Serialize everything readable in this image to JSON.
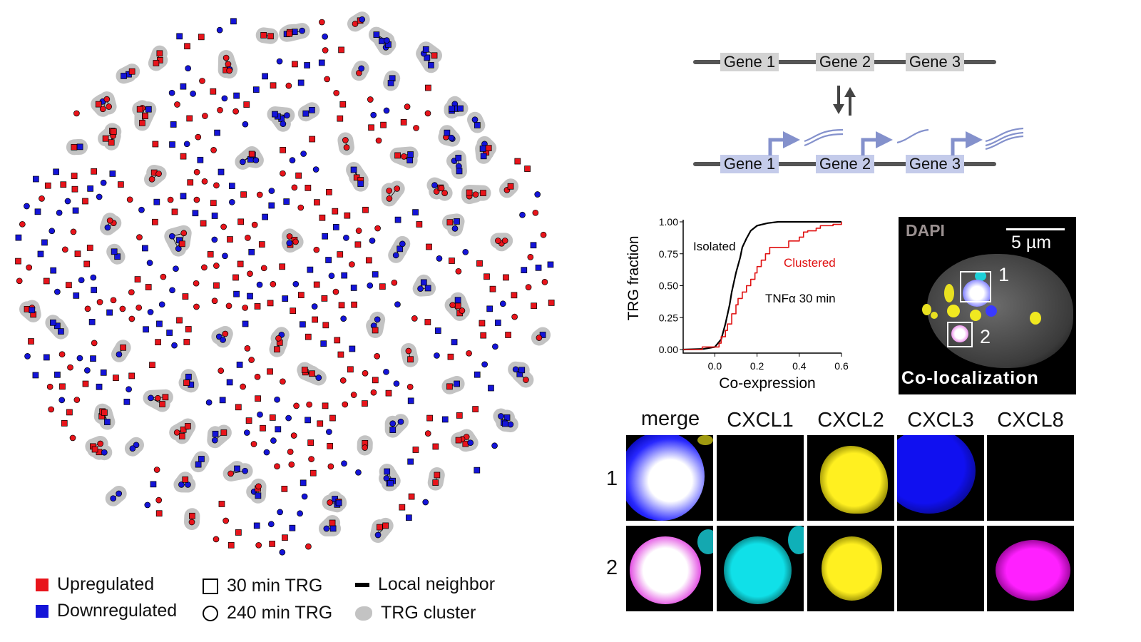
{
  "legend": {
    "upregulated": "Upregulated",
    "downregulated": "Downregulated",
    "trg_30": "30 min TRG",
    "trg_240": "240 min TRG",
    "local_neighbor": "Local neighbor",
    "trg_cluster": "TRG cluster"
  },
  "colors": {
    "up": "#e8141b",
    "down": "#1414d8",
    "cluster": "#c3c3c3",
    "gene_inactive": "#d3d3d3",
    "gene_active": "#c4cbea",
    "promoter": "#8491cc"
  },
  "genes": {
    "top": [
      "Gene 1",
      "Gene 2",
      "Gene 3"
    ],
    "bottom": [
      "Gene 1",
      "Gene 2",
      "Gene 3"
    ]
  },
  "chart_data": {
    "type": "line",
    "xlabel": "Co-expression",
    "ylabel": "TRG fraction",
    "xlim": [
      -0.15,
      0.6
    ],
    "ylim": [
      0,
      1
    ],
    "xticks": [
      "0.0",
      "0.2",
      "0.4",
      "0.6"
    ],
    "yticks": [
      "0.00",
      "0.25",
      "0.50",
      "0.75",
      "1.00"
    ],
    "annotation": "TNFα 30 min",
    "series": [
      {
        "name": "Isolated",
        "color": "#000000",
        "step": false,
        "x": [
          -0.15,
          -0.05,
          0.0,
          0.03,
          0.05,
          0.07,
          0.08,
          0.1,
          0.12,
          0.13,
          0.15,
          0.17,
          0.2,
          0.25,
          0.3,
          0.4,
          0.6
        ],
        "y": [
          0,
          0.005,
          0.02,
          0.08,
          0.2,
          0.35,
          0.45,
          0.6,
          0.72,
          0.8,
          0.87,
          0.93,
          0.97,
          0.99,
          1.0,
          1.0,
          1.0
        ]
      },
      {
        "name": "Clustered",
        "color": "#e01010",
        "step": true,
        "x": [
          -0.15,
          -0.06,
          0.0,
          0.02,
          0.03,
          0.05,
          0.06,
          0.08,
          0.1,
          0.11,
          0.13,
          0.15,
          0.17,
          0.19,
          0.2,
          0.22,
          0.24,
          0.26,
          0.32,
          0.35,
          0.4,
          0.42,
          0.44,
          0.48,
          0.5,
          0.56,
          0.6
        ],
        "y": [
          0,
          0.02,
          0.02,
          0.05,
          0.1,
          0.15,
          0.2,
          0.28,
          0.35,
          0.4,
          0.45,
          0.5,
          0.55,
          0.6,
          0.65,
          0.7,
          0.75,
          0.8,
          0.8,
          0.85,
          0.88,
          0.92,
          0.93,
          0.95,
          0.97,
          0.98,
          1.0
        ]
      }
    ]
  },
  "microscopy": {
    "overview_channel": "DAPI",
    "scale_bar": "5 µm",
    "overview_label": "Co-localization",
    "box_labels": [
      "1",
      "2"
    ],
    "columns": [
      "merge",
      "CXCL1",
      "CXCL2",
      "CXCL3",
      "CXCL8"
    ],
    "rows": [
      "1",
      "2"
    ]
  }
}
